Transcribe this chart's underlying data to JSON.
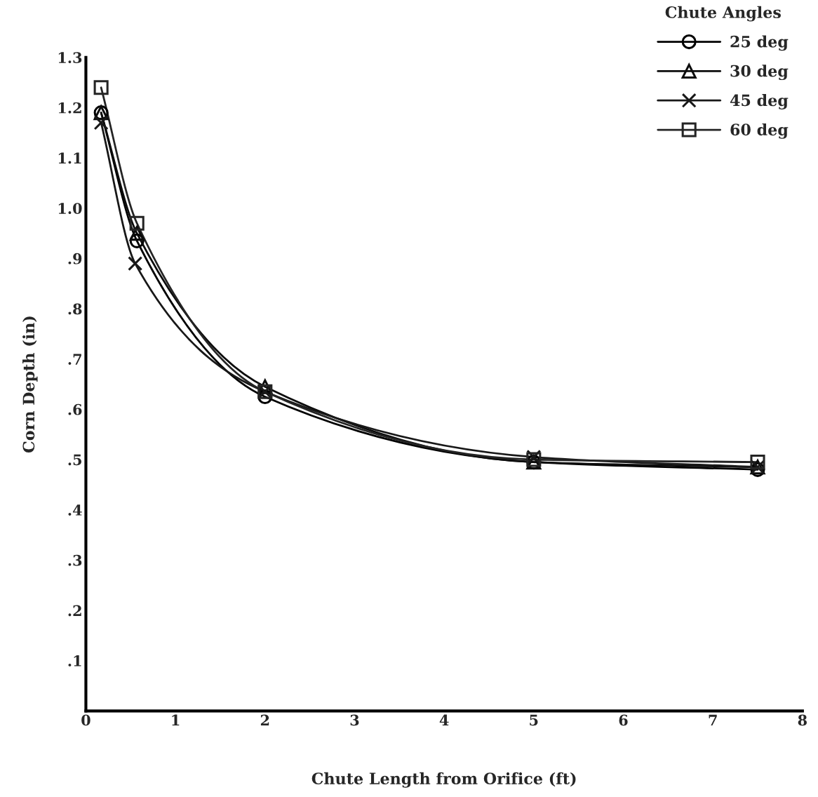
{
  "chart_data": {
    "type": "line",
    "xlabel": "Chute Length from Orifice (ft)",
    "ylabel": "Corn Depth (in)",
    "legend_title": "Chute Angles",
    "xlim": [
      0,
      8
    ],
    "xticks": [
      0,
      1,
      2,
      3,
      4,
      5,
      6,
      7,
      8
    ],
    "ylim": [
      0,
      1.3
    ],
    "yticks": [
      {
        "value": 0.1,
        "label": ".1"
      },
      {
        "value": 0.2,
        "label": ".2"
      },
      {
        "value": 0.3,
        "label": ".3"
      },
      {
        "value": 0.4,
        "label": ".4"
      },
      {
        "value": 0.5,
        "label": ".5"
      },
      {
        "value": 0.6,
        "label": ".6"
      },
      {
        "value": 0.7,
        "label": ".7"
      },
      {
        "value": 0.8,
        "label": ".8"
      },
      {
        "value": 0.9,
        "label": ".9"
      },
      {
        "value": 1.0,
        "label": "1.0"
      },
      {
        "value": 1.1,
        "label": "1.1"
      },
      {
        "value": 1.2,
        "label": "1.2"
      },
      {
        "value": 1.3,
        "label": "1.3"
      }
    ],
    "grid": false,
    "legend": "top right",
    "line_style": "solid",
    "series": [
      {
        "name": "25 deg",
        "color": "#000000",
        "marker": "circle",
        "x": [
          0.17,
          0.57,
          2,
          5,
          7.5
        ],
        "values": [
          1.19,
          0.935,
          0.625,
          0.495,
          0.48
        ]
      },
      {
        "name": "30 deg",
        "color": "#0c0c0c",
        "marker": "triangle",
        "x": [
          0.17,
          0.57,
          2,
          5,
          7.5
        ],
        "values": [
          1.19,
          0.95,
          0.645,
          0.495,
          0.485
        ]
      },
      {
        "name": "45 deg",
        "color": "#181818",
        "marker": "cross",
        "x": [
          0.17,
          0.55,
          2,
          5,
          7.5
        ],
        "values": [
          1.17,
          0.89,
          0.635,
          0.505,
          0.485
        ]
      },
      {
        "name": "60 deg",
        "color": "#242424",
        "marker": "square",
        "x": [
          0.17,
          0.57,
          2,
          5,
          7.5
        ],
        "values": [
          1.24,
          0.97,
          0.635,
          0.5,
          0.495
        ]
      }
    ]
  }
}
